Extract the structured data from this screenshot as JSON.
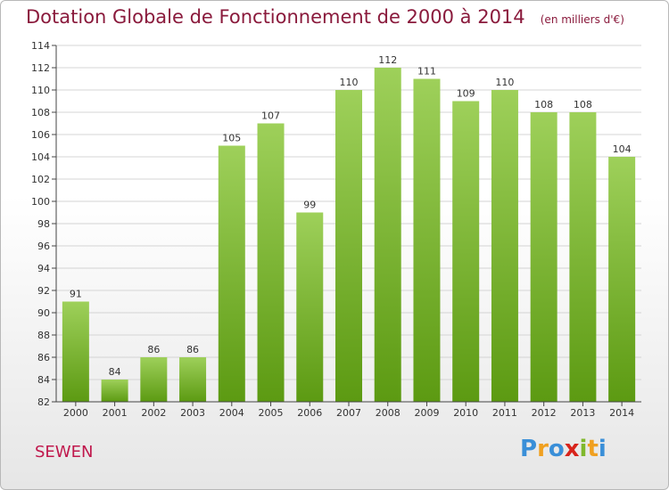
{
  "header": {
    "title": "Dotation Globale de Fonctionnement de 2000 à 2014",
    "unit": "(en milliers d'€)"
  },
  "commune": "SEWEN",
  "logo": {
    "text": "Proxiti",
    "letters": [
      "P",
      "r",
      "o",
      "x",
      "i",
      "t",
      "i"
    ],
    "colors": [
      "#3a8fd8",
      "#f0a020",
      "#3a8fd8",
      "#d8241c",
      "#7fb82c",
      "#f0a020",
      "#3a8fd8"
    ]
  },
  "colors": {
    "title": "#8a1a3c",
    "commune": "#c0184c",
    "bar_top": "#9ed05a",
    "bar_bottom": "#5c9a12"
  },
  "chart_data": {
    "type": "bar",
    "categories": [
      "2000",
      "2001",
      "2002",
      "2003",
      "2004",
      "2005",
      "2006",
      "2007",
      "2008",
      "2009",
      "2010",
      "2011",
      "2012",
      "2013",
      "2014"
    ],
    "values": [
      91,
      84,
      86,
      86,
      105,
      107,
      99,
      110,
      112,
      111,
      109,
      110,
      108,
      108,
      104
    ],
    "data_labels": [
      "91",
      "84",
      "86",
      "86",
      "105",
      "107",
      "99",
      "110",
      "112",
      "111",
      "109",
      "110",
      "108",
      "108",
      "104"
    ],
    "ylim": [
      82,
      114
    ],
    "yticks": [
      82,
      84,
      86,
      88,
      90,
      92,
      94,
      96,
      98,
      100,
      102,
      104,
      106,
      108,
      110,
      112,
      114
    ],
    "grid": true,
    "title": "Dotation Globale de Fonctionnement de 2000 à 2014",
    "xlabel": "",
    "ylabel": ""
  }
}
